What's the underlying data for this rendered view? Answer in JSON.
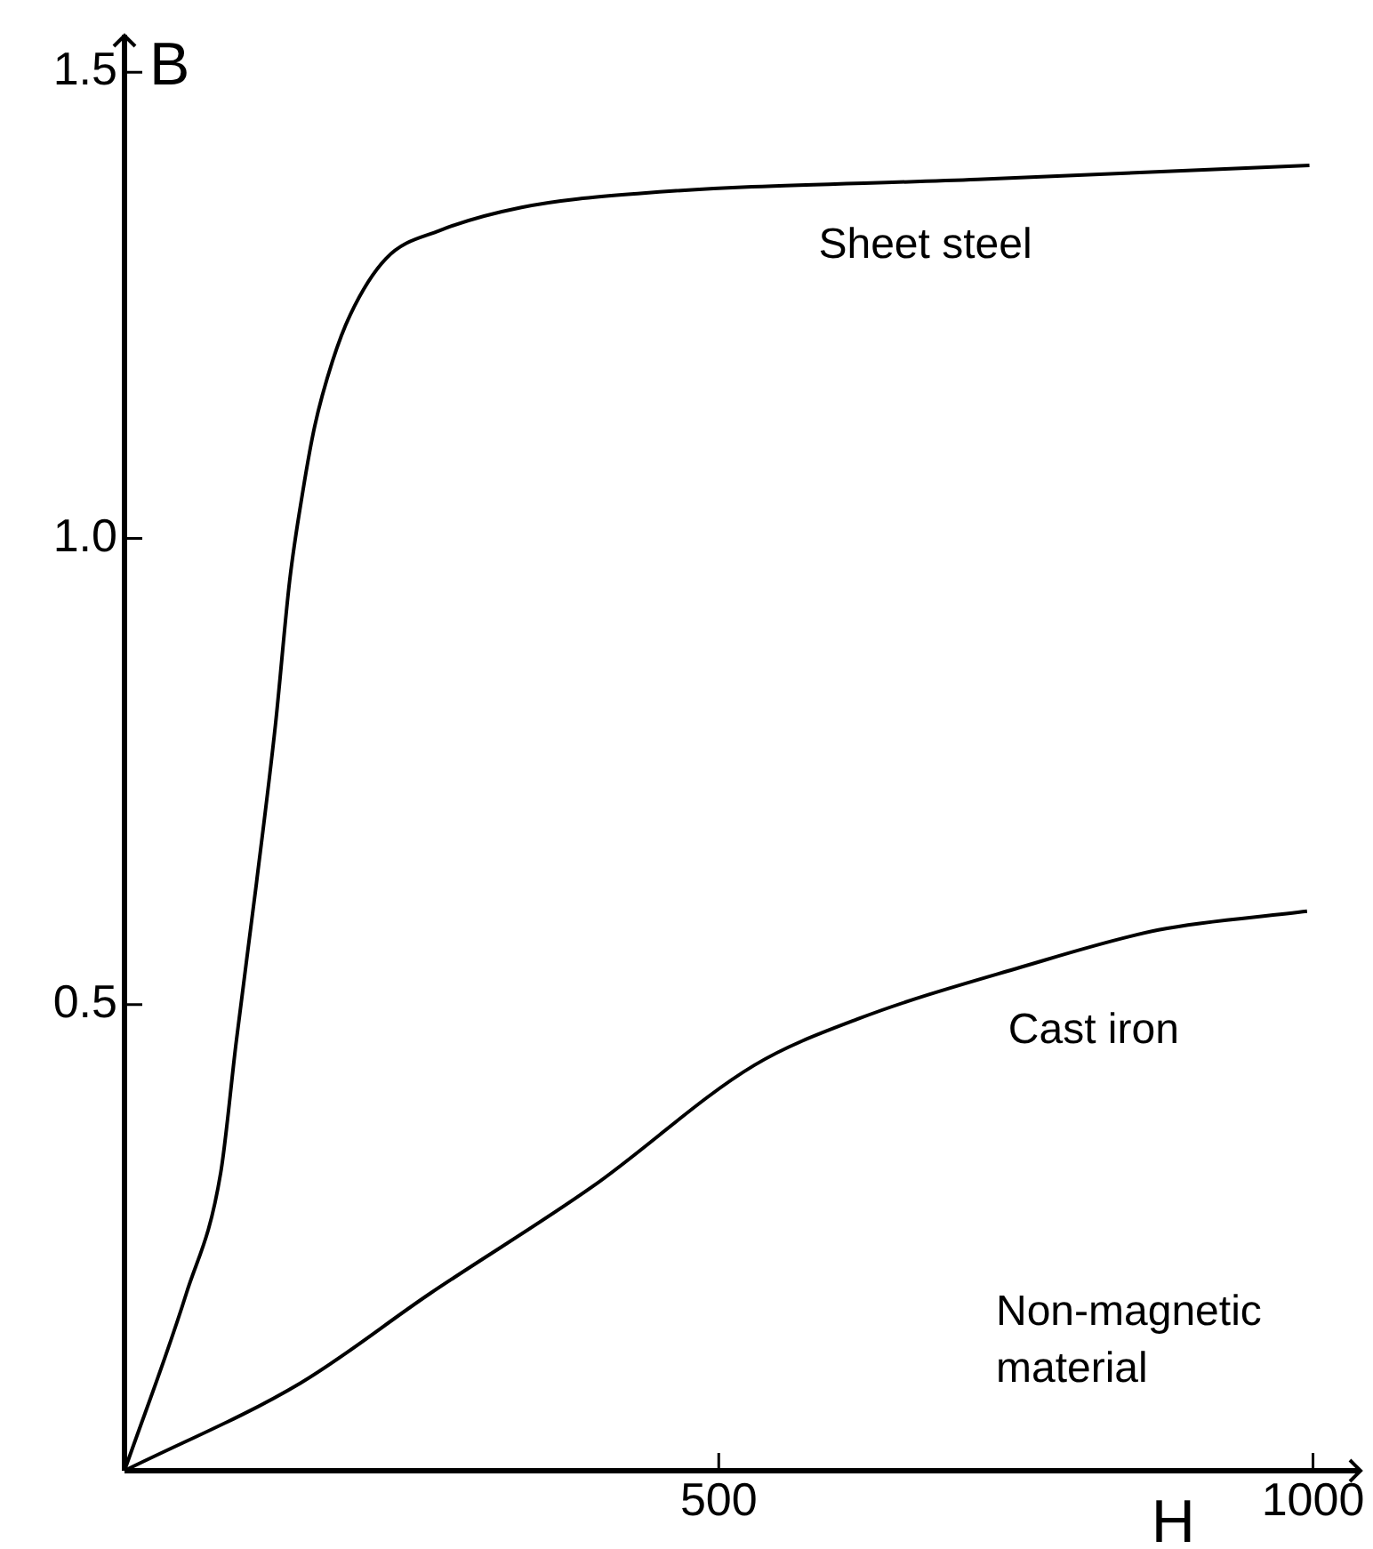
{
  "chart_data": {
    "type": "line",
    "xlabel": "H",
    "ylabel": "B",
    "xlim": [
      0,
      1040
    ],
    "ylim": [
      0,
      1.54
    ],
    "xticks": [
      500,
      1000
    ],
    "yticks": [
      {
        "value": 0.5,
        "label": "0.5"
      },
      {
        "value": 1,
        "label": "1.0"
      },
      {
        "value": 1.5,
        "label": "1.5"
      }
    ],
    "grid": false,
    "legend": false,
    "marker": "none",
    "line_style": "solid",
    "series": [
      {
        "name": "Sheet steel",
        "color": "#000000",
        "x": [
          0,
          52,
          81,
          94,
          111,
          127,
          139,
          150,
          160,
          175,
          190,
          220,
          265,
          334,
          434,
          718,
          997
        ],
        "values": [
          0,
          0.19,
          0.32,
          0.46,
          0.63,
          0.8,
          0.955,
          1.05,
          1.12,
          1.19,
          1.24,
          1.3,
          1.33,
          1.355,
          1.37,
          1.385,
          1.4
        ]
      },
      {
        "name": "Cast iron",
        "color": "#000000",
        "x": [
          0,
          148,
          257,
          394,
          530,
          618,
          754,
          870,
          995
        ],
        "values": [
          0,
          0.094,
          0.19,
          0.305,
          0.435,
          0.485,
          0.54,
          0.58,
          0.6
        ]
      }
    ],
    "annotations": [
      "Non-magnetic material"
    ]
  }
}
